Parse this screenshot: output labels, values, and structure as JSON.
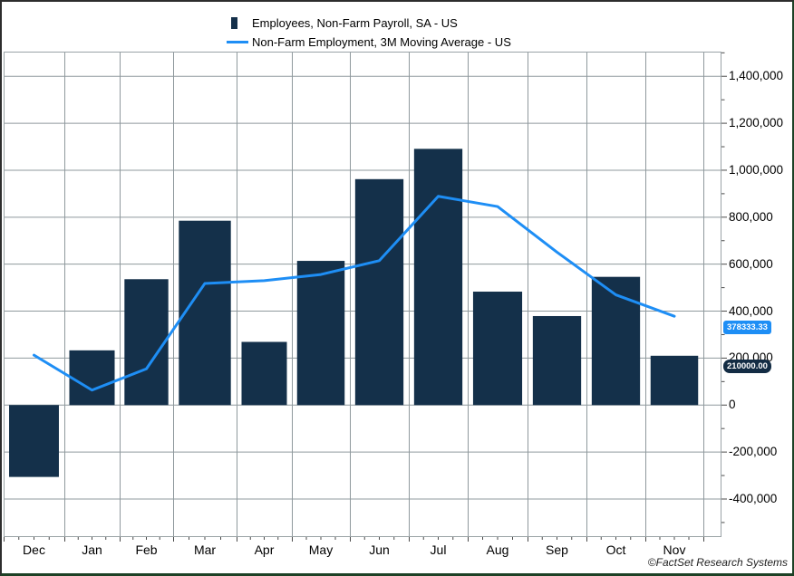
{
  "legend": {
    "items": [
      {
        "label": "Employees, Non-Farm Payroll, SA - US",
        "swatch": "bar",
        "color": "#14304A"
      },
      {
        "label": "Non-Farm Employment, 3M Moving Average - US",
        "swatch": "line",
        "color": "#1E8EF5"
      }
    ]
  },
  "chart_data": {
    "type": "bar",
    "categories": [
      "Dec",
      "Jan",
      "Feb",
      "Mar",
      "Apr",
      "May",
      "Jun",
      "Jul",
      "Aug",
      "Sep",
      "Oct",
      "Nov"
    ],
    "series": [
      {
        "name": "Employees, Non-Farm Payroll, SA - US",
        "type": "bar",
        "color": "#14304A",
        "values": [
          -306000,
          233000,
          536000,
          785000,
          269000,
          614000,
          962000,
          1091000,
          483000,
          379000,
          546000,
          210000
        ]
      },
      {
        "name": "Non-Farm Employment, 3M Moving Average - US",
        "type": "line",
        "color": "#1E8EF5",
        "values": [
          212666.67,
          63666.67,
          154333.33,
          518000,
          530000,
          556000,
          615000,
          889000,
          845333.33,
          651000,
          469333.33,
          378333.33
        ]
      }
    ],
    "ylabel": "",
    "xlabel": "",
    "ylim": [
      -562000,
      1505000
    ],
    "yticks": [
      {
        "value": 1400000,
        "label": "1,400,000"
      },
      {
        "value": 1200000,
        "label": "1,200,000"
      },
      {
        "value": 1000000,
        "label": "1,000,000"
      },
      {
        "value": 800000,
        "label": "800,000"
      },
      {
        "value": 600000,
        "label": "600,000"
      },
      {
        "value": 400000,
        "label": "400,000"
      },
      {
        "value": 200000,
        "label": "200,000"
      },
      {
        "value": 0,
        "label": "0"
      },
      {
        "value": -200000,
        "label": "-200,000"
      },
      {
        "value": -400000,
        "label": "-400,000"
      }
    ],
    "grid": true,
    "legend_position": "top-center",
    "grid_color": "#8F999D",
    "frame_color": "#9AA3A6",
    "tick_color": "#4a4a4a"
  },
  "badges": [
    {
      "text": "378333.33",
      "value": 378333.33,
      "bg": "#1E8EF5"
    },
    {
      "text": "210000.00",
      "value": 210000.0,
      "bg": "#132C44"
    }
  ],
  "attribution": "©FactSet Research Systems"
}
